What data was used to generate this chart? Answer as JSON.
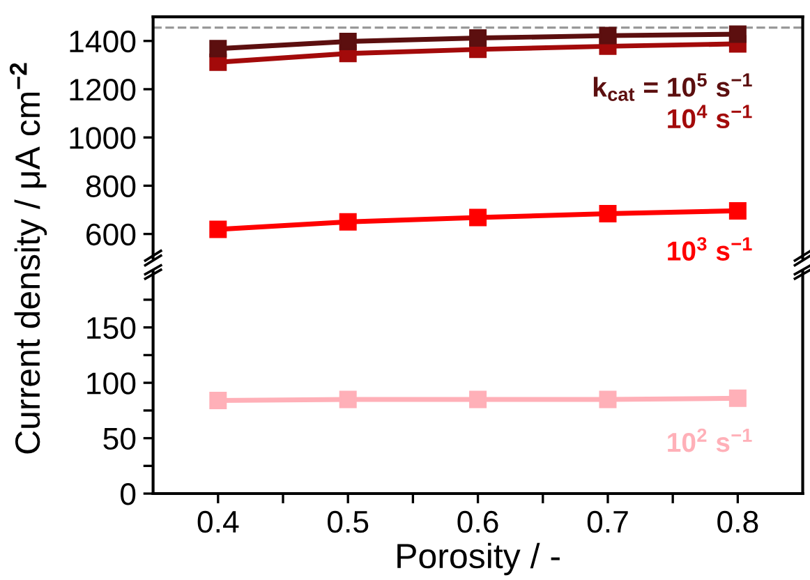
{
  "chart_data": [
    {
      "type": "line",
      "ylabel": "Current density / μA cm$^{−2}$",
      "xlim": [
        0.35,
        0.85
      ],
      "ylim": [
        500,
        1500
      ],
      "yticks": [
        600,
        800,
        1000,
        1200,
        1400
      ],
      "tick_labels": "y",
      "marker": "square",
      "line_style": "solid",
      "grid": false,
      "legend": false,
      "x": [
        0.4,
        0.5,
        0.6,
        0.7,
        0.8
      ],
      "series": [
        {
          "name": "k$_{cat}$ = 10$^{5}$ s$^{−1}$",
          "color": "#5c0f0f",
          "values": [
            1368,
            1398,
            1412,
            1422,
            1428
          ]
        },
        {
          "name": "10$^{4}$ s$^{−1}$",
          "color": "#a30a0a",
          "values": [
            1312,
            1348,
            1365,
            1378,
            1388
          ]
        },
        {
          "name": "10$^{3}$ s$^{−1}$",
          "color": "#ff0000",
          "values": [
            619,
            650,
            668,
            684,
            696
          ]
        }
      ],
      "ref_lines": [
        {
          "axis": "y",
          "value": 1455,
          "color": "#999999",
          "line_style": "dashed"
        }
      ]
    },
    {
      "type": "line",
      "xlabel": "Porosity / -",
      "xlim": [
        0.35,
        0.85
      ],
      "xticks": [
        0.4,
        {
          "value": 0.45,
          "label": null
        },
        0.5,
        {
          "value": 0.55,
          "label": null
        },
        0.6,
        {
          "value": 0.65,
          "label": null
        },
        0.7,
        {
          "value": 0.75,
          "label": null
        },
        0.8
      ],
      "ylim": [
        0,
        200
      ],
      "yticks": [
        0,
        {
          "value": 25,
          "label": null
        },
        50,
        {
          "value": 75,
          "label": null
        },
        100,
        {
          "value": 125,
          "label": null
        },
        150,
        {
          "value": 175,
          "label": null
        }
      ],
      "marker": "square",
      "line_style": "solid",
      "grid": false,
      "legend": false,
      "x": [
        0.4,
        0.5,
        0.6,
        0.7,
        0.8
      ],
      "series": [
        {
          "name": "10$^{2}$ s$^{−1}$",
          "color": "#ffb0b8",
          "values": [
            84,
            85,
            85,
            85,
            86
          ]
        }
      ]
    }
  ]
}
